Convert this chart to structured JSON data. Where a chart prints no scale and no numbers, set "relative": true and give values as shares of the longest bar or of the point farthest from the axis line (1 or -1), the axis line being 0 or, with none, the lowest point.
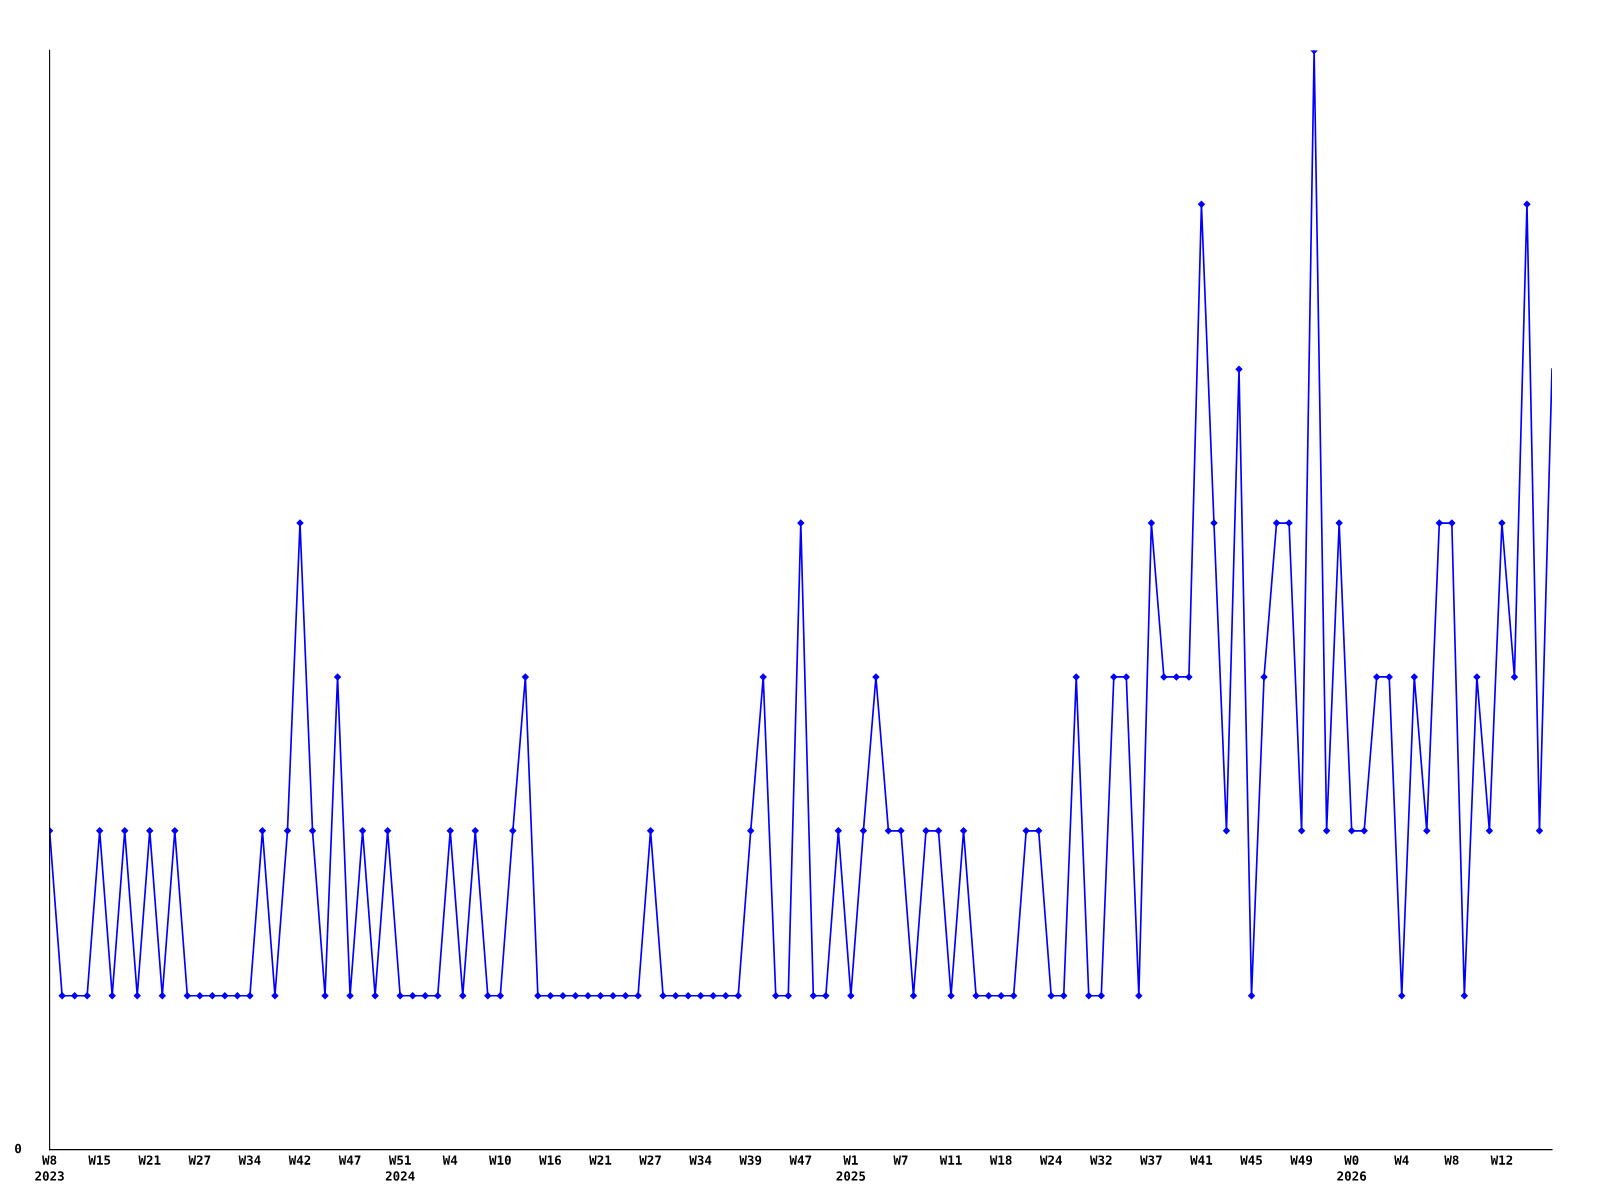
{
  "chart_data": {
    "type": "line",
    "relative": true,
    "marker": "diamond",
    "line_style": "solid",
    "grid": false,
    "legend": false,
    "categories": [
      "W8\n2023",
      null,
      null,
      null,
      "W15",
      null,
      null,
      null,
      "W21",
      null,
      null,
      null,
      "W27",
      null,
      null,
      null,
      "W34",
      null,
      null,
      null,
      "W42",
      null,
      null,
      null,
      "W47",
      null,
      null,
      null,
      "W51\n2024",
      null,
      null,
      null,
      "W4",
      null,
      null,
      null,
      "W10",
      null,
      null,
      null,
      "W16",
      null,
      null,
      null,
      "W21",
      null,
      null,
      null,
      "W27",
      null,
      null,
      null,
      "W34",
      null,
      null,
      null,
      "W39",
      null,
      null,
      null,
      "W47",
      null,
      null,
      null,
      "W1\n2025",
      null,
      null,
      null,
      "W7",
      null,
      null,
      null,
      "W11",
      null,
      null,
      null,
      "W18",
      null,
      null,
      null,
      "W24",
      null,
      null,
      null,
      "W32",
      null,
      null,
      null,
      "W37",
      null,
      null,
      null,
      "W41",
      null,
      null,
      null,
      "W45",
      null,
      null,
      null,
      "W49",
      null,
      null,
      null,
      "W0\n2026",
      null,
      null,
      null,
      "W4",
      null,
      null,
      null,
      "W8",
      null,
      null,
      null,
      "W12",
      null,
      null,
      null,
      null
    ],
    "series": [
      {
        "color": "#0000ff",
        "values": [
          0.29,
          0.14,
          0.14,
          0.14,
          0.29,
          0.14,
          0.29,
          0.14,
          0.29,
          0.14,
          0.29,
          0.14,
          0.14,
          0.14,
          0.14,
          0.14,
          0.14,
          0.29,
          0.14,
          0.29,
          0.57,
          0.29,
          0.14,
          0.43,
          0.14,
          0.29,
          0.14,
          0.29,
          0.14,
          0.14,
          0.14,
          0.14,
          0.29,
          0.14,
          0.29,
          0.14,
          0.14,
          0.29,
          0.43,
          0.14,
          0.14,
          0.14,
          0.14,
          0.14,
          0.14,
          0.14,
          0.14,
          0.14,
          0.29,
          0.14,
          0.14,
          0.14,
          0.14,
          0.14,
          0.14,
          0.14,
          0.29,
          0.43,
          0.14,
          0.14,
          0.57,
          0.14,
          0.14,
          0.29,
          0.14,
          0.29,
          0.43,
          0.29,
          0.29,
          0.14,
          0.29,
          0.29,
          0.14,
          0.29,
          0.14,
          0.14,
          0.14,
          0.14,
          0.29,
          0.29,
          0.14,
          0.14,
          0.43,
          0.14,
          0.14,
          0.43,
          0.43,
          0.14,
          0.57,
          0.43,
          0.43,
          0.43,
          0.86,
          0.57,
          0.29,
          0.71,
          0.14,
          0.43,
          0.57,
          0.57,
          0.29,
          1,
          0.29,
          0.57,
          0.29,
          0.29,
          0.43,
          0.43,
          0.14,
          0.43,
          0.29,
          0.57,
          0.57,
          0.14,
          0.43,
          0.29,
          0.57,
          0.43,
          0.86,
          0.29,
          0.71
        ]
      }
    ],
    "annotations": [
      "0"
    ]
  }
}
